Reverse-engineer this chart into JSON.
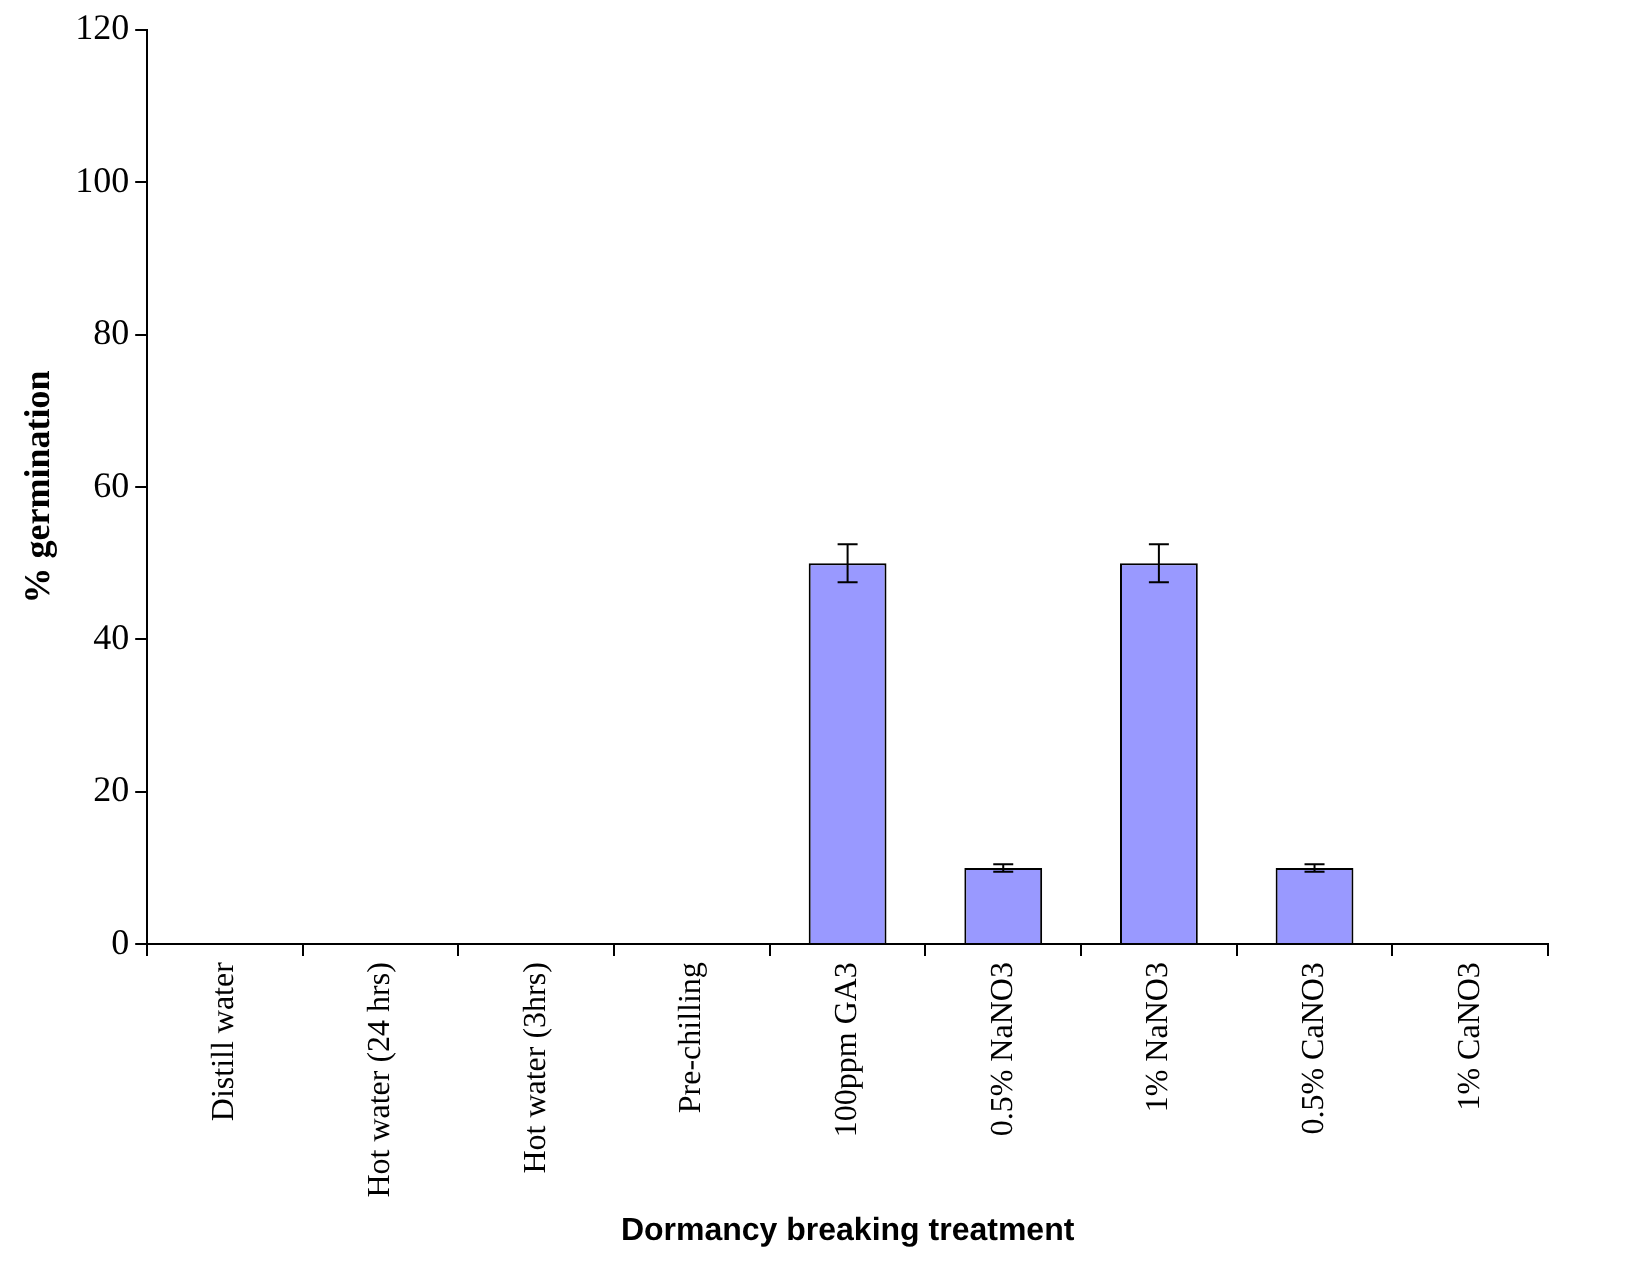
{
  "chart_data": {
    "type": "bar",
    "xlabel": "Dormancy breaking treatment",
    "ylabel": "% germination",
    "categories": [
      "Distill water",
      "Hot water (24 hrs)",
      "Hot water (3hrs)",
      "Pre-chilling",
      "100ppm GA3",
      "0.5% NaNO3",
      "1% NaNO3",
      "0.5% CaNO3",
      "1% CaNO3"
    ],
    "values": [
      0,
      0,
      0,
      0,
      50,
      10,
      50,
      10,
      0
    ],
    "errors": [
      null,
      null,
      null,
      null,
      2.5,
      0.5,
      2.5,
      0.5,
      null
    ],
    "color": "#9999ff",
    "ylim": [
      0,
      120
    ],
    "yticks": [
      0,
      20,
      40,
      60,
      80,
      100,
      120
    ],
    "grid": false,
    "legend": false
  }
}
